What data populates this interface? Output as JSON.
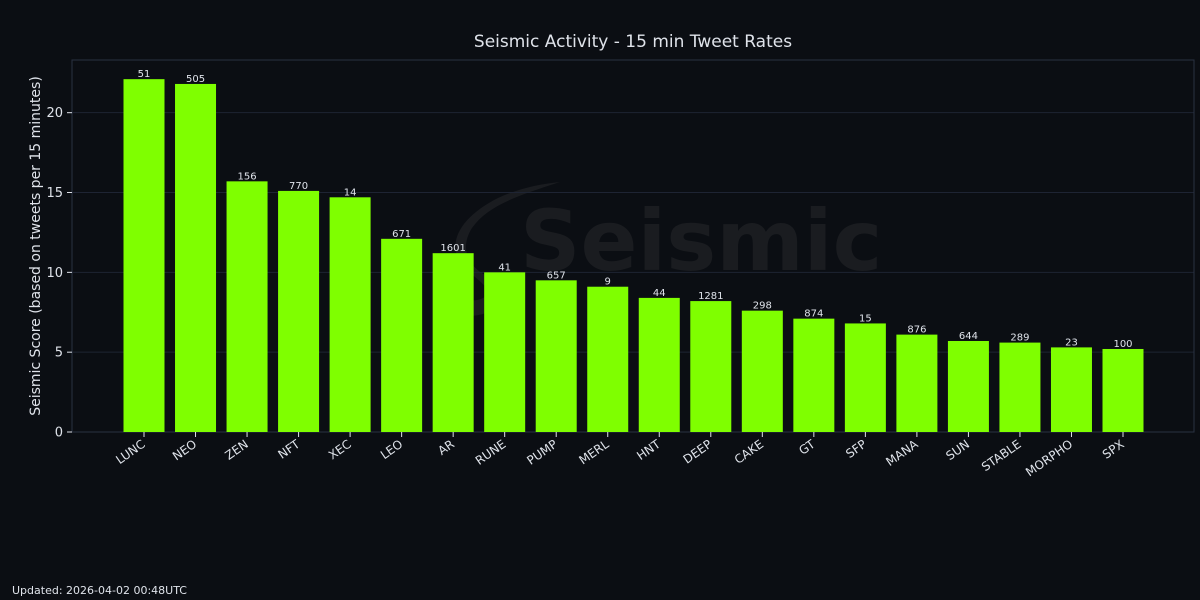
{
  "chart_data": {
    "type": "bar",
    "title": "Seismic Activity - 15 min Tweet Rates",
    "xlabel": "",
    "ylabel": "Seismic Score (based on tweets per 15 minutes)",
    "ylim": [
      0,
      23.3
    ],
    "yticks": [
      0,
      5,
      10,
      15,
      20
    ],
    "grid": true,
    "categories": [
      "LUNC",
      "NEO",
      "ZEN",
      "NFT",
      "XEC",
      "LEO",
      "AR",
      "RUNE",
      "PUMP",
      "MERL",
      "HNT",
      "DEEP",
      "CAKE",
      "GT",
      "SFP",
      "MANA",
      "SUN",
      "STABLE",
      "MORPHO",
      "SPX"
    ],
    "values": [
      22.1,
      21.8,
      15.7,
      15.1,
      14.7,
      12.1,
      11.2,
      10.0,
      9.5,
      9.1,
      8.4,
      8.2,
      7.6,
      7.1,
      6.8,
      6.1,
      5.7,
      5.6,
      5.3,
      5.2
    ],
    "data_labels": [
      "51",
      "505",
      "156",
      "770",
      "14",
      "671",
      "1601",
      "41",
      "657",
      "9",
      "44",
      "1281",
      "298",
      "874",
      "15",
      "876",
      "644",
      "289",
      "23",
      "100"
    ],
    "bar_color": "#7fff00",
    "grid_color": "#1e2433",
    "axis_color": "#2a3142"
  },
  "watermark": {
    "text": "Seismic"
  },
  "footer": {
    "updated": "Updated: 2026-04-02 00:48UTC"
  }
}
